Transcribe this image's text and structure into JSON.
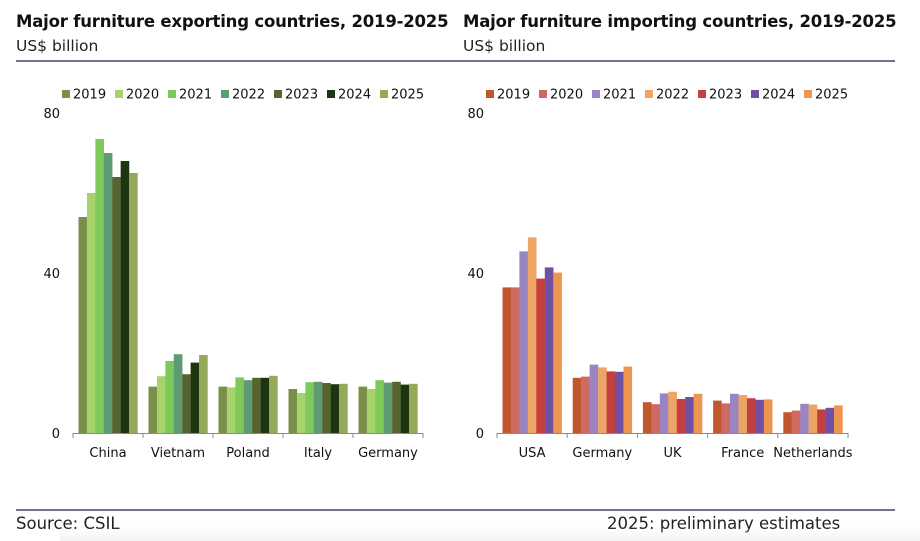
{
  "header": {
    "left_title": "Major furniture exporting countries, 2019-2025",
    "left_subtitle": "US$ billion",
    "right_title": "Major furniture importing countries, 2019-2025",
    "right_subtitle": "US$ billion"
  },
  "footer": {
    "source": "Source: CSIL",
    "note": "2025: preliminary estimates"
  },
  "chart_data": [
    {
      "type": "bar",
      "title": "Major furniture exporting countries, 2019-2025",
      "subtitle": "US$ billion",
      "xlabel": "",
      "ylabel": "US$ billion",
      "ylim": [
        0,
        80
      ],
      "yticks": [
        0,
        40,
        80
      ],
      "grid": false,
      "legend_position": "top",
      "categories": [
        "China",
        "Vietnam",
        "Poland",
        "Italy",
        "Germany"
      ],
      "series": [
        {
          "name": "2019",
          "color": "#7a8f4a",
          "values": [
            54,
            11.6,
            11.6,
            11,
            11.6
          ]
        },
        {
          "name": "2020",
          "color": "#a6d46b",
          "values": [
            60,
            14.2,
            11.4,
            10,
            11
          ]
        },
        {
          "name": "2021",
          "color": "#7dc95a",
          "values": [
            73.5,
            18,
            13.9,
            12.7,
            13.2
          ]
        },
        {
          "name": "2022",
          "color": "#5e9b74",
          "values": [
            70,
            19.7,
            13.2,
            12.8,
            12.6
          ]
        },
        {
          "name": "2023",
          "color": "#56652f",
          "values": [
            64,
            14.7,
            13.8,
            12.5,
            12.8
          ]
        },
        {
          "name": "2024",
          "color": "#1e3512",
          "values": [
            68,
            17.6,
            13.8,
            12.2,
            12.1
          ]
        },
        {
          "name": "2025",
          "color": "#94aa5a",
          "values": [
            65,
            19.5,
            14.3,
            12.3,
            12.3
          ]
        }
      ]
    },
    {
      "type": "bar",
      "title": "Major furniture importing countries, 2019-2025",
      "subtitle": "US$ billion",
      "xlabel": "",
      "ylabel": "US$ billion",
      "ylim": [
        0,
        80
      ],
      "yticks": [
        0,
        40,
        80
      ],
      "grid": false,
      "legend_position": "top",
      "categories": [
        "USA",
        "Germany",
        "UK",
        "France",
        "Netherlands"
      ],
      "series": [
        {
          "name": "2019",
          "color": "#c0582f",
          "values": [
            36.4,
            13.8,
            7.7,
            8.1,
            5.2
          ]
        },
        {
          "name": "2020",
          "color": "#cf6a63",
          "values": [
            36.4,
            14.1,
            7.2,
            7.4,
            5.6
          ]
        },
        {
          "name": "2021",
          "color": "#9a84c2",
          "values": [
            45.4,
            17.1,
            9.9,
            9.8,
            7.3
          ]
        },
        {
          "name": "2022",
          "color": "#eda566",
          "values": [
            48.9,
            16.4,
            10.3,
            9.5,
            7.1
          ]
        },
        {
          "name": "2023",
          "color": "#c44040",
          "values": [
            38.6,
            15.4,
            8.5,
            8.7,
            5.9
          ]
        },
        {
          "name": "2024",
          "color": "#6f50a3",
          "values": [
            41.4,
            15.3,
            9,
            8.3,
            6.3
          ]
        },
        {
          "name": "2025",
          "color": "#ec9650",
          "values": [
            40.1,
            16.6,
            9.8,
            8.4,
            6.9
          ]
        }
      ]
    }
  ]
}
